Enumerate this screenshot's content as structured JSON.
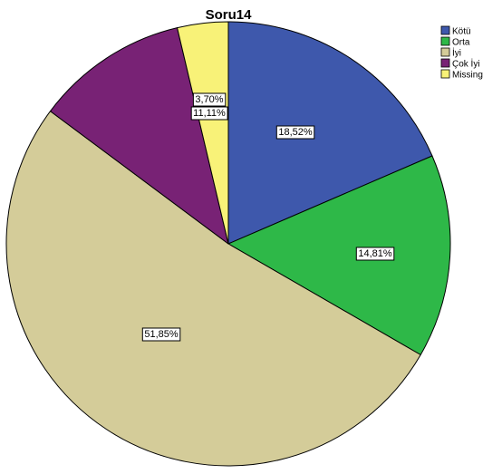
{
  "chart_data": {
    "type": "pie",
    "title": "Soru14",
    "slices": [
      {
        "label": "Kötü",
        "value": 18.52,
        "display": "18,52%",
        "color": "#3e58ac"
      },
      {
        "label": "Orta",
        "value": 14.81,
        "display": "14,81%",
        "color": "#2eb848"
      },
      {
        "label": "İyi",
        "value": 51.85,
        "display": "51,85%",
        "color": "#d4cc99"
      },
      {
        "label": "Çok İyi",
        "value": 11.11,
        "display": "11,11%",
        "color": "#782275"
      },
      {
        "label": "Missing",
        "value": 3.7,
        "display": "3,70%",
        "color": "#f8f278"
      }
    ],
    "start_angle": "12 o'clock",
    "direction": "clockwise",
    "legend_position": "top-right",
    "legend": [
      "Kötü",
      "Orta",
      "İyi",
      "Çok İyi",
      "Missing"
    ]
  }
}
